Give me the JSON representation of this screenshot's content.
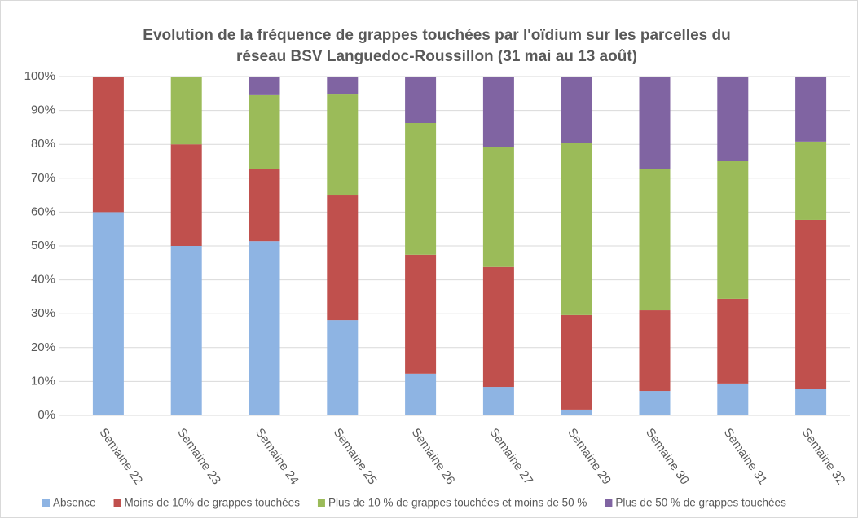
{
  "chart_data": {
    "type": "stacked_bar",
    "title": [
      "Evolution de la fréquence de grappes touchées par l'oïdium sur les parcelles du",
      "réseau BSV Languedoc-Roussillon (31 mai au 13 août)"
    ],
    "categories": [
      "Semaine 22",
      "Semaine 23",
      "Semaine 24",
      "Semaine 25",
      "Semaine 26",
      "Semaine 27",
      "Semaine 29",
      "Semaine 30",
      "Semaine 31",
      "Semaine 32"
    ],
    "series": [
      {
        "name": "Absence",
        "color": "#8eb4e3",
        "values": [
          60,
          50,
          51.4,
          28.1,
          12.3,
          8.4,
          1.7,
          7.2,
          9.4,
          7.7
        ]
      },
      {
        "name": "Moins de 10% de grappes touchées",
        "color": "#c0504d",
        "values": [
          40,
          30,
          21.4,
          36.8,
          35.1,
          35.4,
          27.9,
          23.8,
          25,
          50
        ]
      },
      {
        "name": "Plus de 10 % de grappes touchées et moins de 50 %",
        "color": "#9bbb59",
        "values": [
          0,
          20,
          21.7,
          29.8,
          38.9,
          35.3,
          50.7,
          41.6,
          40.6,
          23.1
        ]
      },
      {
        "name": "Plus de 50 % de grappes touchées",
        "color": "#8064a2",
        "values": [
          0,
          0,
          5.5,
          5.3,
          13.7,
          20.9,
          19.7,
          27.4,
          25,
          19.2
        ]
      }
    ],
    "ylim": [
      0,
      100
    ],
    "yticks": [
      {
        "value": 0,
        "label": "0%"
      },
      {
        "value": 10,
        "label": "10%"
      },
      {
        "value": 20,
        "label": "20%"
      },
      {
        "value": 30,
        "label": "30%"
      },
      {
        "value": 40,
        "label": "40%"
      },
      {
        "value": 50,
        "label": "50%"
      },
      {
        "value": 60,
        "label": "60%"
      },
      {
        "value": 70,
        "label": "70%"
      },
      {
        "value": 80,
        "label": "80%"
      },
      {
        "value": 90,
        "label": "90%"
      },
      {
        "value": 100,
        "label": "100%"
      }
    ],
    "grid": true,
    "legend": "bottom"
  }
}
